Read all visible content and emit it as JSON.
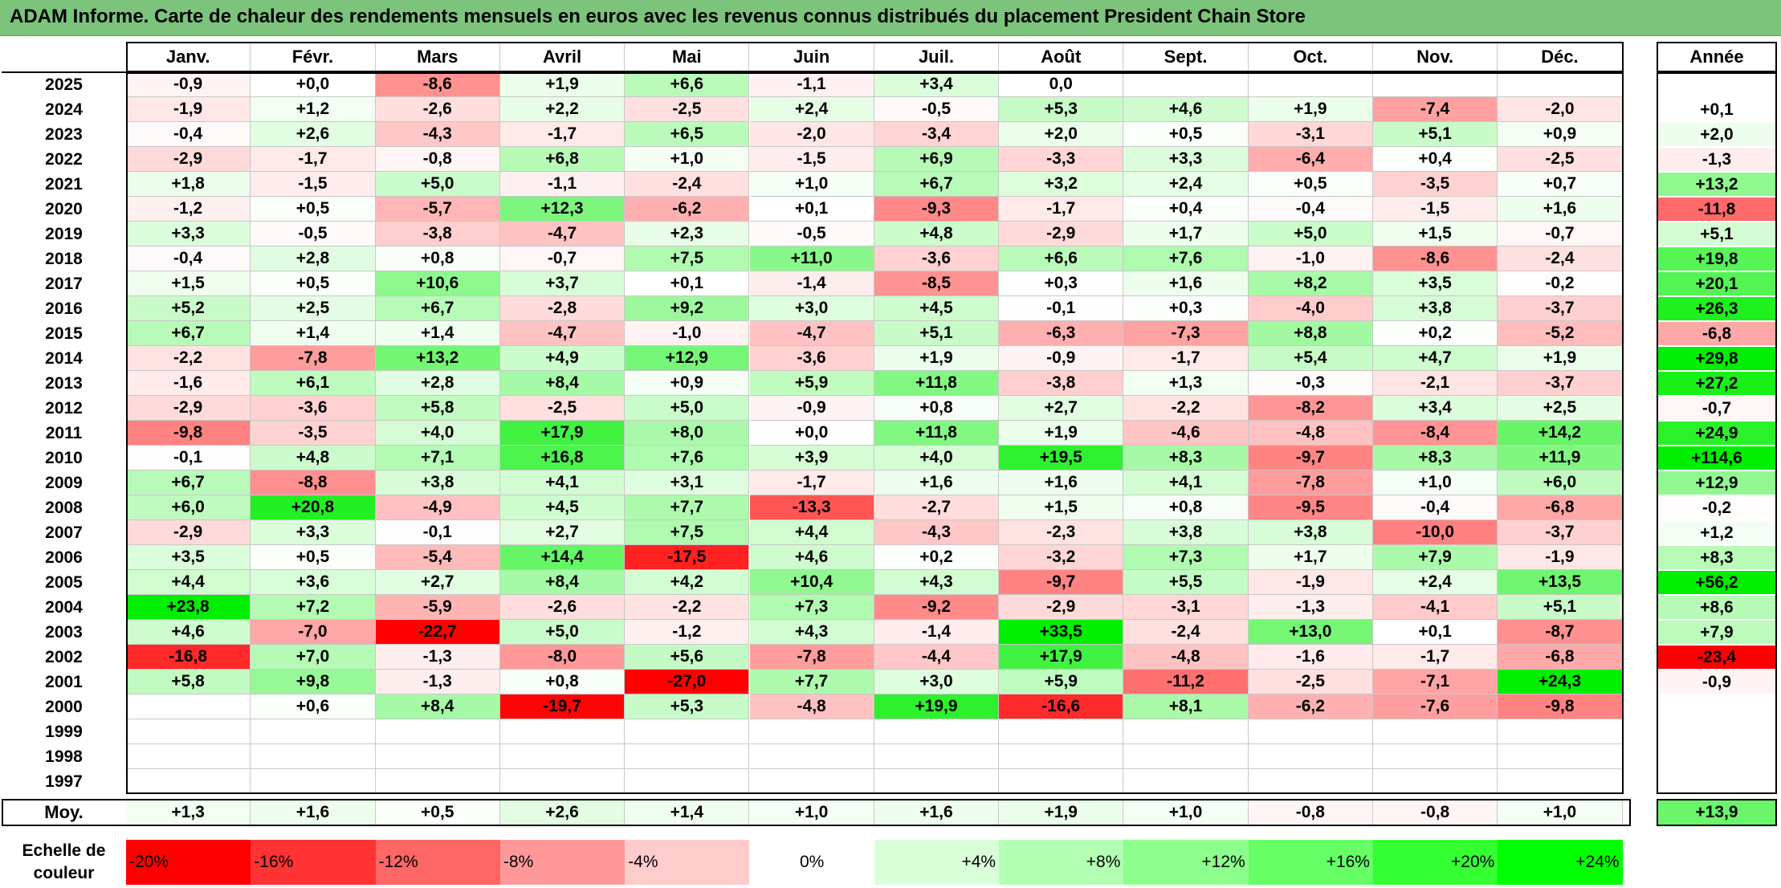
{
  "title": "ADAM Informe. Carte de chaleur des rendements mensuels en euros avec les revenus connus distribués du placement President Chain Store",
  "chart_data": {
    "type": "heatmap",
    "months": [
      "Janv.",
      "Févr.",
      "Mars",
      "Avril",
      "Mai",
      "Juin",
      "Juil.",
      "Août",
      "Sept.",
      "Oct.",
      "Nov.",
      "Déc."
    ],
    "year_header": "Année",
    "rows": [
      {
        "year": "2025",
        "values": [
          "-0,9",
          "+0,0",
          "-8,6",
          "+1,9",
          "+6,6",
          "-1,1",
          "+3,4",
          "0,0",
          "",
          "",
          "",
          ""
        ],
        "annual": ""
      },
      {
        "year": "2024",
        "values": [
          "-1,9",
          "+1,2",
          "-2,6",
          "+2,2",
          "-2,5",
          "+2,4",
          "-0,5",
          "+5,3",
          "+4,6",
          "+1,9",
          "-7,4",
          "-2,0"
        ],
        "annual": "+0,1"
      },
      {
        "year": "2023",
        "values": [
          "-0,4",
          "+2,6",
          "-4,3",
          "-1,7",
          "+6,5",
          "-2,0",
          "-3,4",
          "+2,0",
          "+0,5",
          "-3,1",
          "+5,1",
          "+0,9"
        ],
        "annual": "+2,0"
      },
      {
        "year": "2022",
        "values": [
          "-2,9",
          "-1,7",
          "-0,8",
          "+6,8",
          "+1,0",
          "-1,5",
          "+6,9",
          "-3,3",
          "+3,3",
          "-6,4",
          "+0,4",
          "-2,5"
        ],
        "annual": "-1,3"
      },
      {
        "year": "2021",
        "values": [
          "+1,8",
          "-1,5",
          "+5,0",
          "-1,1",
          "-2,4",
          "+1,0",
          "+6,7",
          "+3,2",
          "+2,4",
          "+0,5",
          "-3,5",
          "+0,7"
        ],
        "annual": "+13,2"
      },
      {
        "year": "2020",
        "values": [
          "-1,2",
          "+0,5",
          "-5,7",
          "+12,3",
          "-6,2",
          "+0,1",
          "-9,3",
          "-1,7",
          "+0,4",
          "-0,4",
          "-1,5",
          "+1,6"
        ],
        "annual": "-11,8"
      },
      {
        "year": "2019",
        "values": [
          "+3,3",
          "-0,5",
          "-3,8",
          "-4,7",
          "+2,3",
          "-0,5",
          "+4,8",
          "-2,9",
          "+1,7",
          "+5,0",
          "+1,5",
          "-0,7"
        ],
        "annual": "+5,1"
      },
      {
        "year": "2018",
        "values": [
          "-0,4",
          "+2,8",
          "+0,8",
          "-0,7",
          "+7,5",
          "+11,0",
          "-3,6",
          "+6,6",
          "+7,6",
          "-1,0",
          "-8,6",
          "-2,4"
        ],
        "annual": "+19,8"
      },
      {
        "year": "2017",
        "values": [
          "+1,5",
          "+0,5",
          "+10,6",
          "+3,7",
          "+0,1",
          "-1,4",
          "-8,5",
          "+0,3",
          "+1,6",
          "+8,2",
          "+3,5",
          "-0,2"
        ],
        "annual": "+20,1"
      },
      {
        "year": "2016",
        "values": [
          "+5,2",
          "+2,5",
          "+6,7",
          "-2,8",
          "+9,2",
          "+3,0",
          "+4,5",
          "-0,1",
          "+0,3",
          "-4,0",
          "+3,8",
          "-3,7"
        ],
        "annual": "+26,3"
      },
      {
        "year": "2015",
        "values": [
          "+6,7",
          "+1,4",
          "+1,4",
          "-4,7",
          "-1,0",
          "-4,7",
          "+5,1",
          "-6,3",
          "-7,3",
          "+8,8",
          "+0,2",
          "-5,2"
        ],
        "annual": "-6,8"
      },
      {
        "year": "2014",
        "values": [
          "-2,2",
          "-7,8",
          "+13,2",
          "+4,9",
          "+12,9",
          "-3,6",
          "+1,9",
          "-0,9",
          "-1,7",
          "+5,4",
          "+4,7",
          "+1,9"
        ],
        "annual": "+29,8"
      },
      {
        "year": "2013",
        "values": [
          "-1,6",
          "+6,1",
          "+2,8",
          "+8,4",
          "+0,9",
          "+5,9",
          "+11,8",
          "-3,8",
          "+1,3",
          "-0,3",
          "-2,1",
          "-3,7"
        ],
        "annual": "+27,2"
      },
      {
        "year": "2012",
        "values": [
          "-2,9",
          "-3,6",
          "+5,8",
          "-2,5",
          "+5,0",
          "-0,9",
          "+0,8",
          "+2,7",
          "-2,2",
          "-8,2",
          "+3,4",
          "+2,5"
        ],
        "annual": "-0,7"
      },
      {
        "year": "2011",
        "values": [
          "-9,8",
          "-3,5",
          "+4,0",
          "+17,9",
          "+8,0",
          "+0,0",
          "+11,8",
          "+1,9",
          "-4,6",
          "-4,8",
          "-8,4",
          "+14,2"
        ],
        "annual": "+24,9"
      },
      {
        "year": "2010",
        "values": [
          "-0,1",
          "+4,8",
          "+7,1",
          "+16,8",
          "+7,6",
          "+3,9",
          "+4,0",
          "+19,5",
          "+8,3",
          "-9,7",
          "+8,3",
          "+11,9"
        ],
        "annual": "+114,6"
      },
      {
        "year": "2009",
        "values": [
          "+6,7",
          "-8,8",
          "+3,8",
          "+4,1",
          "+3,1",
          "-1,7",
          "+1,6",
          "+1,6",
          "+4,1",
          "-7,8",
          "+1,0",
          "+6,0"
        ],
        "annual": "+12,9"
      },
      {
        "year": "2008",
        "values": [
          "+6,0",
          "+20,8",
          "-4,9",
          "+4,5",
          "+7,7",
          "-13,3",
          "-2,7",
          "+1,5",
          "+0,8",
          "-9,5",
          "-0,4",
          "-6,8"
        ],
        "annual": "-0,2"
      },
      {
        "year": "2007",
        "values": [
          "-2,9",
          "+3,3",
          "-0,1",
          "+2,7",
          "+7,5",
          "+4,4",
          "-4,3",
          "-2,3",
          "+3,8",
          "+3,8",
          "-10,0",
          "-3,7"
        ],
        "annual": "+1,2"
      },
      {
        "year": "2006",
        "values": [
          "+3,5",
          "+0,5",
          "-5,4",
          "+14,4",
          "-17,5",
          "+4,6",
          "+0,2",
          "-3,2",
          "+7,3",
          "+1,7",
          "+7,9",
          "-1,9"
        ],
        "annual": "+8,3"
      },
      {
        "year": "2005",
        "values": [
          "+4,4",
          "+3,6",
          "+2,7",
          "+8,4",
          "+4,2",
          "+10,4",
          "+4,3",
          "-9,7",
          "+5,5",
          "-1,9",
          "+2,4",
          "+13,5"
        ],
        "annual": "+56,2"
      },
      {
        "year": "2004",
        "values": [
          "+23,8",
          "+7,2",
          "-5,9",
          "-2,6",
          "-2,2",
          "+7,3",
          "-9,2",
          "-2,9",
          "-3,1",
          "-1,3",
          "-4,1",
          "+5,1"
        ],
        "annual": "+8,6"
      },
      {
        "year": "2003",
        "values": [
          "+4,6",
          "-7,0",
          "-22,7",
          "+5,0",
          "-1,2",
          "+4,3",
          "-1,4",
          "+33,5",
          "-2,4",
          "+13,0",
          "+0,1",
          "-8,7"
        ],
        "annual": "+7,9"
      },
      {
        "year": "2002",
        "values": [
          "-16,8",
          "+7,0",
          "-1,3",
          "-8,0",
          "+5,6",
          "-7,8",
          "-4,4",
          "+17,9",
          "-4,8",
          "-1,6",
          "-1,7",
          "-6,8"
        ],
        "annual": "-23,4"
      },
      {
        "year": "2001",
        "values": [
          "+5,8",
          "+9,8",
          "-1,3",
          "+0,8",
          "-27,0",
          "+7,7",
          "+3,0",
          "+5,9",
          "-11,2",
          "-2,5",
          "-7,1",
          "+24,3"
        ],
        "annual": "-0,9"
      },
      {
        "year": "2000",
        "values": [
          "",
          "+0,6",
          "+8,4",
          "-19,7",
          "+5,3",
          "-4,8",
          "+19,9",
          "-16,6",
          "+8,1",
          "-6,2",
          "-7,6",
          "-9,8"
        ],
        "annual": ""
      },
      {
        "year": "1999",
        "values": [
          "",
          "",
          "",
          "",
          "",
          "",
          "",
          "",
          "",
          "",
          "",
          ""
        ],
        "annual": ""
      },
      {
        "year": "1998",
        "values": [
          "",
          "",
          "",
          "",
          "",
          "",
          "",
          "",
          "",
          "",
          "",
          ""
        ],
        "annual": ""
      },
      {
        "year": "1997",
        "values": [
          "",
          "",
          "",
          "",
          "",
          "",
          "",
          "",
          "",
          "",
          "",
          ""
        ],
        "annual": ""
      }
    ],
    "average": {
      "label": "Moy.",
      "values": [
        "+1,3",
        "+1,6",
        "+0,5",
        "+2,6",
        "+1,4",
        "+1,0",
        "+1,6",
        "+1,9",
        "+1,0",
        "-0,8",
        "-0,8",
        "+1,0"
      ],
      "annual": "+13,9"
    },
    "scale": {
      "label_line1": "Echelle de",
      "label_line2": "couleur",
      "labels": [
        "-20%",
        "-16%",
        "-12%",
        "-8%",
        "-4%",
        "0%",
        "+4%",
        "+8%",
        "+12%",
        "+16%",
        "+20%",
        "+24%"
      ],
      "colors": [
        "#ff0000",
        "#ff3333",
        "#ff6666",
        "#ff9999",
        "#ffcccc",
        "#ffffff",
        "#d9ffd9",
        "#b3ffb3",
        "#8cff8c",
        "#66ff66",
        "#33ff33",
        "#00ff00"
      ]
    },
    "colors": {
      "negative": "#ff0000",
      "neutral": "#ffffff",
      "positive": "#00ee00"
    }
  }
}
